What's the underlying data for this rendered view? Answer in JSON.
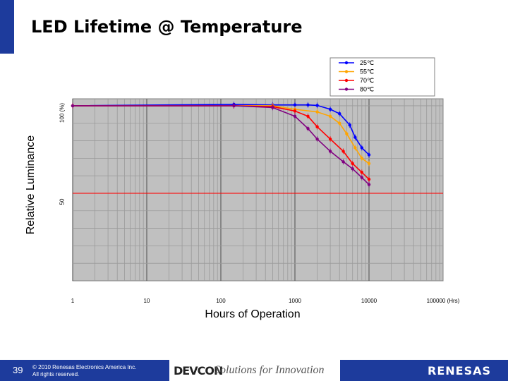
{
  "slide": {
    "title": "LED Lifetime @ Temperature",
    "slide_number": "39",
    "copyright_line1": "© 2010 Renesas Electronics America Inc.",
    "copyright_line2": "All rights reserved.",
    "event_logo": "DEVCON",
    "tagline": "Solutions for Innovation",
    "company_logo": "RENESAS",
    "accent_color": "#1d3b9c"
  },
  "chart_data": {
    "type": "line",
    "ylabel": "Relative Luminance",
    "xlabel": "Hours of Operation",
    "y_ticks": [
      {
        "value": 100,
        "label": "100 (%)"
      },
      {
        "value": 50,
        "label": "50"
      }
    ],
    "x_ticks": [
      {
        "value": 1,
        "label": "1"
      },
      {
        "value": 10,
        "label": "10"
      },
      {
        "value": 100,
        "label": "100"
      },
      {
        "value": 1000,
        "label": "1000"
      },
      {
        "value": 10000,
        "label": "10000"
      },
      {
        "value": 100000,
        "label": "100000 (Hrs)"
      }
    ],
    "x_scale": "log",
    "xlim": [
      1,
      100000
    ],
    "ylim": [
      0,
      104
    ],
    "grid": true,
    "plot_background": "#c0c0c0",
    "legend_position": "top-right",
    "reference_line": {
      "y": 50,
      "color": "#ff0000"
    },
    "series": [
      {
        "name": "25℃",
        "color": "#0000ff",
        "x": [
          1,
          150,
          500,
          1000,
          1500,
          2000,
          3000,
          4000,
          5500,
          6500,
          8000,
          10000
        ],
        "y": [
          100,
          100.8,
          100.5,
          100.5,
          100.5,
          100.2,
          98,
          95.5,
          89,
          82,
          76,
          72
        ]
      },
      {
        "name": "55℃",
        "color": "#ffa500",
        "x": [
          1,
          500,
          1000,
          2000,
          3000,
          4000,
          5000,
          6500,
          8000,
          10000
        ],
        "y": [
          100,
          100,
          98,
          96.5,
          94,
          90,
          84,
          76,
          70,
          67
        ]
      },
      {
        "name": "70℃",
        "color": "#ff0000",
        "x": [
          1,
          150,
          500,
          1000,
          1500,
          2000,
          3000,
          4500,
          6000,
          8000,
          10000
        ],
        "y": [
          100,
          100,
          99.5,
          97,
          94,
          88,
          81,
          74,
          67,
          62,
          58
        ]
      },
      {
        "name": "80℃",
        "color": "#800080",
        "x": [
          1,
          150,
          500,
          1000,
          1500,
          2000,
          3000,
          4500,
          6000,
          8000,
          10000
        ],
        "y": [
          100,
          100,
          99,
          94,
          87,
          81,
          74,
          68,
          64,
          59,
          55
        ]
      }
    ]
  }
}
